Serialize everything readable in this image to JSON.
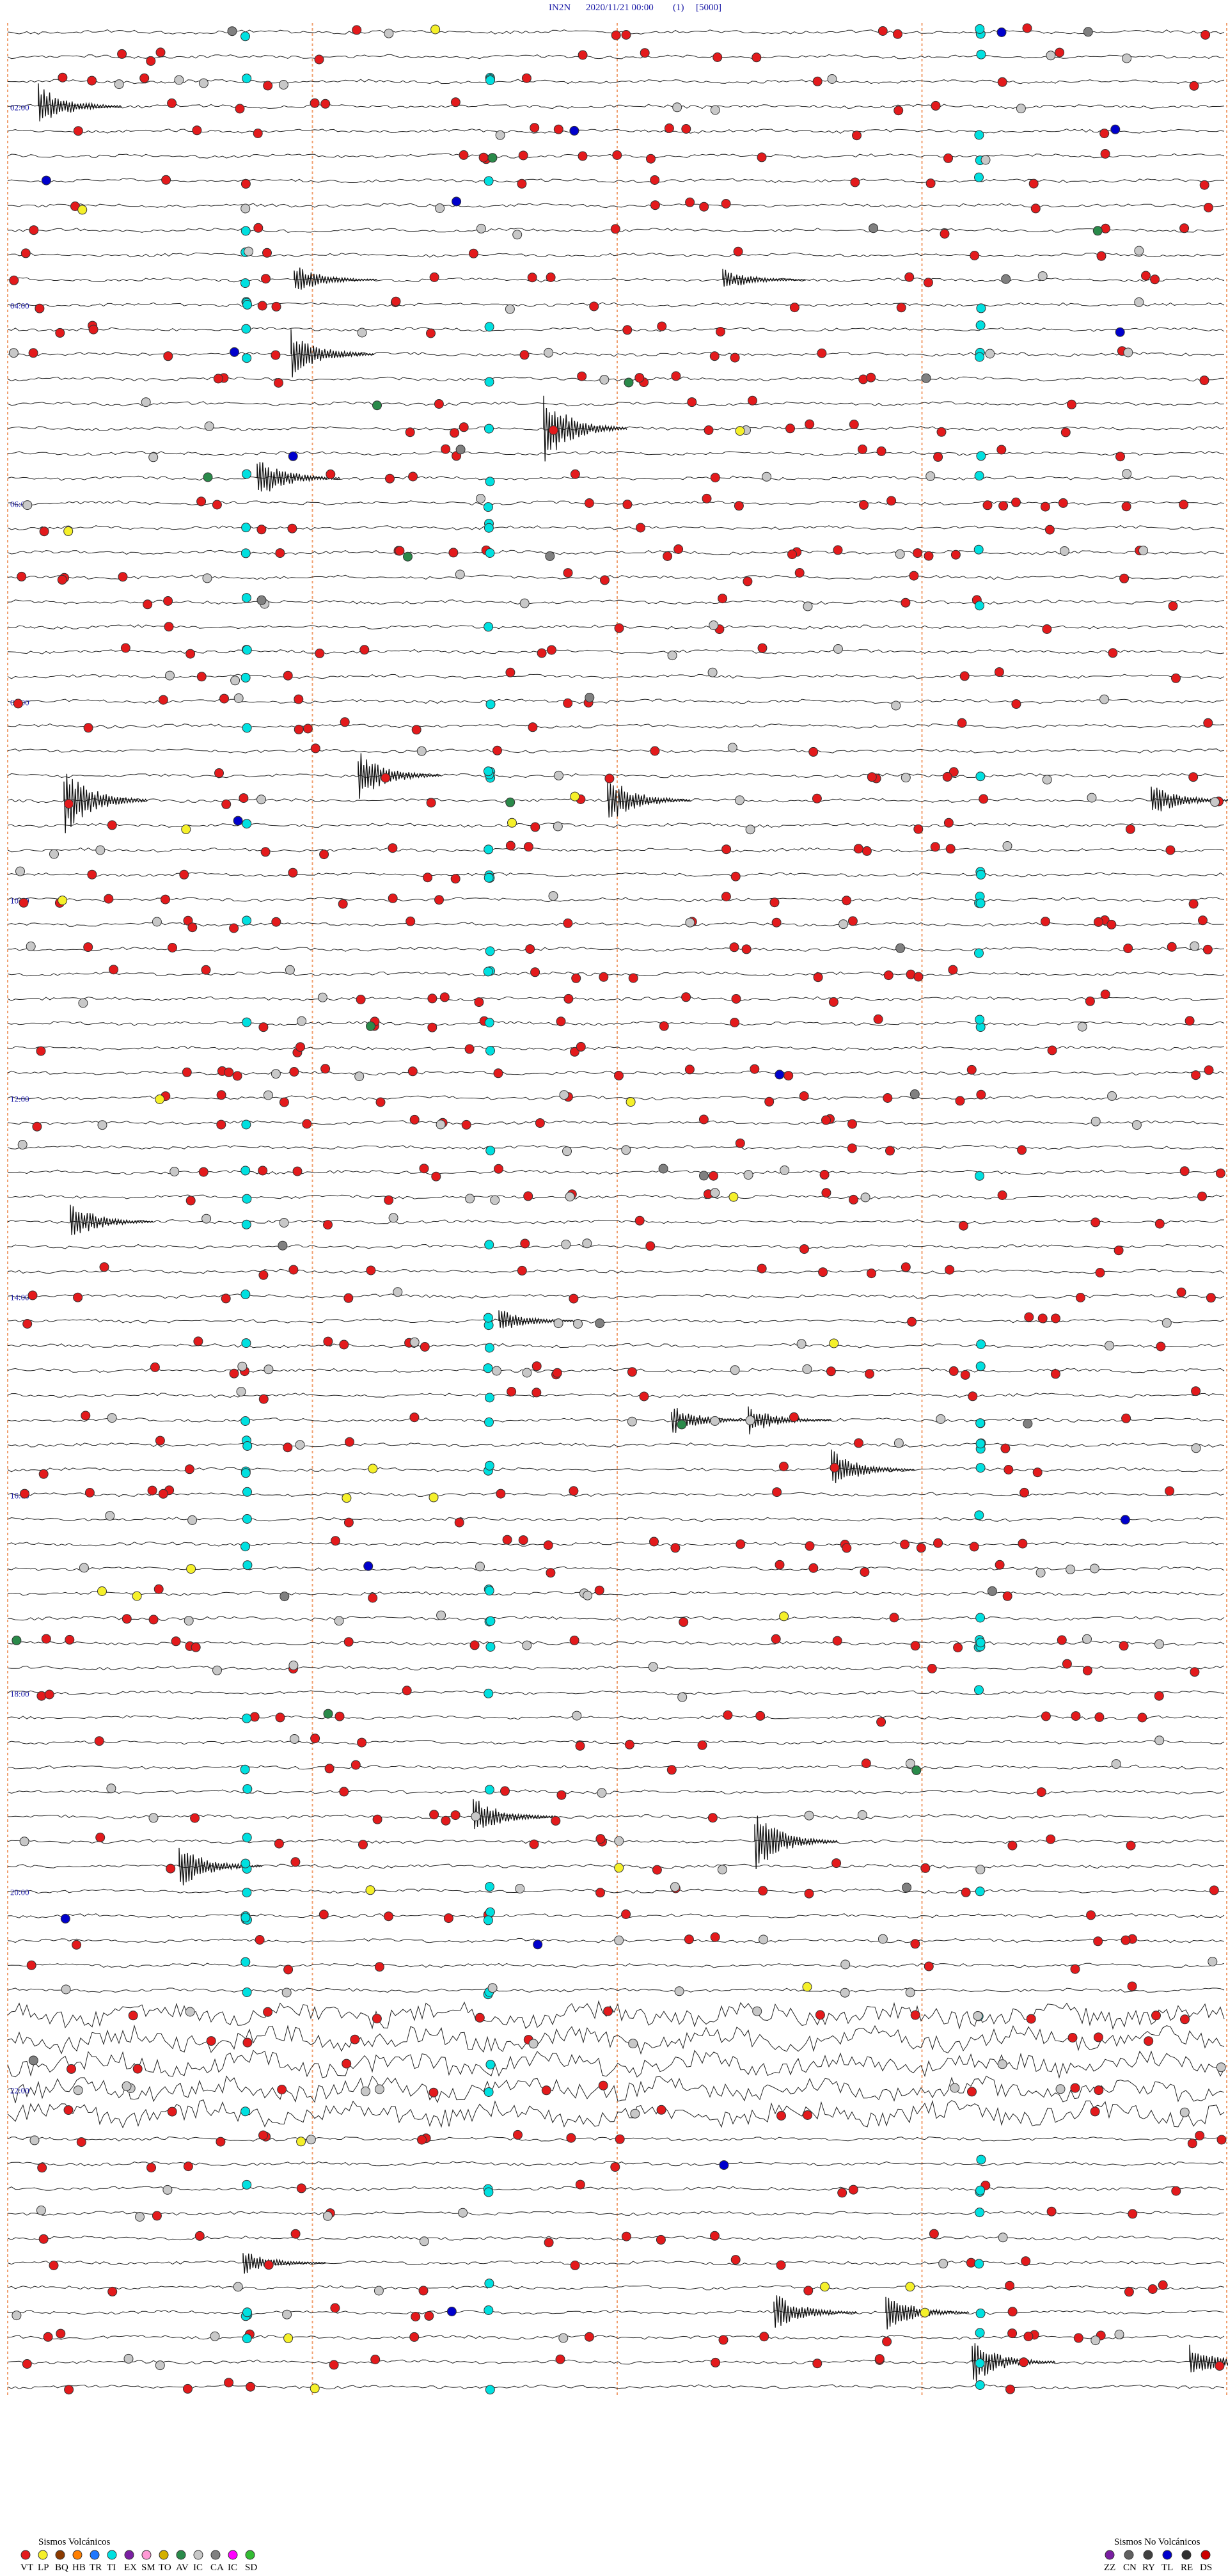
{
  "header": {
    "station": "IN2N",
    "datetime": "2020/11/21 00:00",
    "component": "(1)",
    "scale": "[5000]"
  },
  "chart_data": {
    "type": "helicorder",
    "title": "",
    "xlabel": "",
    "ylabel": "",
    "trace_count": 96,
    "time_labels": [
      "02:00",
      "04:00",
      "06:00",
      "08:00",
      "10:00",
      "12:00",
      "14:00",
      "16:00",
      "18:00",
      "20:00",
      "22:00"
    ],
    "minute_markers": [
      0,
      15,
      30,
      45,
      60
    ],
    "legend_placement": "bottom",
    "legend": {
      "volcanic": {
        "title": "Sismos Volcánicos",
        "codes": [
          "VT",
          "LP",
          "BQ",
          "HB",
          "TR",
          "TI",
          "EX",
          "SM",
          "TO",
          "AV",
          "IC",
          "CA",
          "IC",
          "SD"
        ],
        "colors": [
          "#e31a1c",
          "#f5f02a",
          "#8b3a00",
          "#ff7f00",
          "#1f78ff",
          "#00e0e0",
          "#7a1fa2",
          "#ff9ad5",
          "#d4b000",
          "#2a8a4a",
          "#c8c8c8",
          "#808080",
          "#ff00ff",
          "#33bb33"
        ]
      },
      "non_volcanic": {
        "title": "Sismos No Volcánicos",
        "codes": [
          "ZZ",
          "CN",
          "RY",
          "TL",
          "RE",
          "DS"
        ],
        "colors": [
          "#7a1fa2",
          "#606060",
          "#404040",
          "#0000cc",
          "#2f2f2f",
          "#cc0000"
        ]
      }
    },
    "event_counts": {
      "VT": 720,
      "TI": 160,
      "IC": 210,
      "CA": 20,
      "AV": 12,
      "LP": 28,
      "TL": 16
    }
  }
}
